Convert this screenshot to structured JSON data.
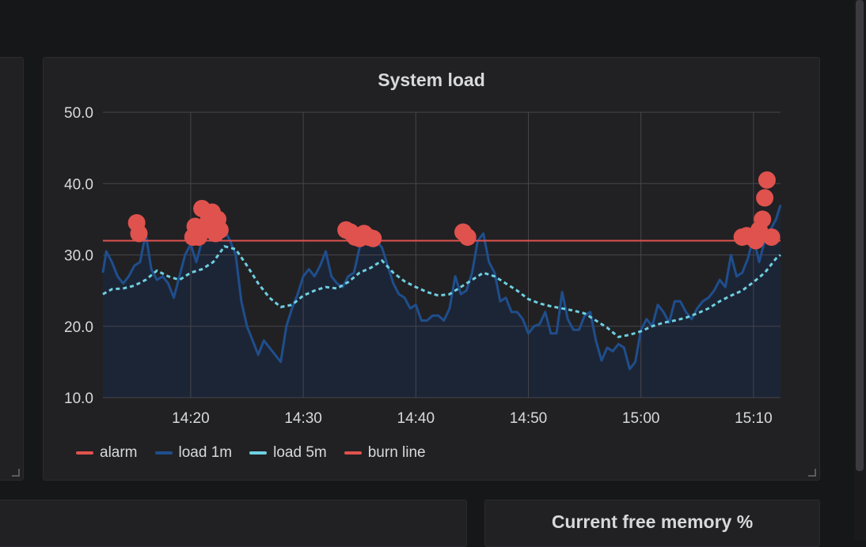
{
  "panels": {
    "main_title": "System load",
    "bottom_right_title": "Current free memory %"
  },
  "colors": {
    "alarm": "#e0524d",
    "load1": "#1f4e8c",
    "load5": "#6ed0e0",
    "burn": "#e0524d",
    "fill": "#1c2536",
    "grid": "#45454b",
    "text": "#d8d9da"
  },
  "chart_data": {
    "type": "line",
    "title": "System load",
    "ylim": [
      10,
      50
    ],
    "yticks": [
      "10.0",
      "20.0",
      "30.0",
      "40.0",
      "50.0"
    ],
    "ytick_values": [
      10,
      20,
      30,
      40,
      50
    ],
    "xlim": [
      12.2,
      72.4
    ],
    "xticks": [
      "14:20",
      "14:30",
      "14:40",
      "14:50",
      "15:00",
      "15:10"
    ],
    "xtick_values": [
      20,
      30,
      40,
      50,
      60,
      70
    ],
    "x_unit": "minutes after 14:00",
    "grid": true,
    "legend_position": "bottom-left",
    "legend": [
      "alarm",
      "load 1m",
      "load 5m",
      "burn line"
    ],
    "series": [
      {
        "name": "load 1m",
        "x": [
          12.2,
          12.5,
          13.0,
          13.5,
          14.0,
          14.5,
          15.0,
          15.5,
          16.0,
          16.5,
          17.0,
          17.5,
          18.0,
          18.5,
          19.0,
          19.5,
          20.0,
          20.5,
          21.0,
          21.5,
          22.0,
          22.5,
          23.0,
          23.5,
          24.0,
          24.5,
          25.0,
          25.5,
          26.0,
          26.5,
          27.0,
          27.5,
          28.0,
          28.5,
          29.0,
          29.5,
          30.0,
          30.5,
          31.0,
          31.5,
          32.0,
          32.5,
          33.0,
          33.5,
          34.0,
          34.5,
          35.0,
          35.5,
          36.0,
          36.5,
          37.0,
          37.5,
          38.0,
          38.5,
          39.0,
          39.5,
          40.0,
          40.5,
          41.0,
          41.5,
          42.0,
          42.5,
          43.0,
          43.5,
          44.0,
          44.5,
          45.0,
          45.5,
          46.0,
          46.5,
          47.0,
          47.5,
          48.0,
          48.5,
          49.0,
          49.5,
          50.0,
          50.5,
          51.0,
          51.5,
          52.0,
          52.5,
          53.0,
          53.5,
          54.0,
          54.5,
          55.0,
          55.5,
          56.0,
          56.5,
          57.0,
          57.5,
          58.0,
          58.5,
          59.0,
          59.5,
          60.0,
          60.5,
          61.0,
          61.5,
          62.0,
          62.5,
          63.0,
          63.5,
          64.0,
          64.5,
          65.0,
          65.5,
          66.0,
          66.5,
          67.0,
          67.5,
          68.0,
          68.5,
          69.0,
          69.5,
          70.0,
          70.5,
          71.0,
          71.5,
          72.0,
          72.4
        ],
        "values": [
          27.5,
          30.5,
          29.0,
          27.0,
          26.0,
          27.0,
          28.5,
          29.0,
          33.0,
          28.0,
          26.5,
          27.0,
          26.0,
          24.0,
          27.0,
          30.0,
          31.5,
          29.0,
          32.0,
          33.0,
          34.0,
          35.0,
          33.5,
          32.0,
          30.0,
          23.5,
          20.0,
          18.0,
          16.0,
          18.0,
          17.0,
          16.0,
          15.0,
          20.0,
          22.5,
          24.5,
          27.0,
          28.0,
          27.0,
          28.5,
          30.5,
          27.0,
          26.0,
          25.5,
          27.0,
          27.5,
          31.0,
          33.0,
          31.5,
          32.0,
          31.0,
          28.5,
          26.0,
          24.5,
          24.0,
          22.5,
          23.0,
          20.8,
          20.8,
          21.5,
          21.5,
          20.8,
          22.5,
          27.0,
          24.5,
          25.0,
          27.5,
          32.0,
          33.0,
          29.0,
          27.5,
          23.5,
          24.0,
          22.0,
          22.0,
          21.0,
          19.0,
          20.0,
          20.3,
          22.0,
          19.0,
          19.0,
          24.8,
          21.0,
          19.5,
          19.5,
          21.5,
          22.0,
          18.0,
          15.2,
          17.0,
          16.5,
          17.5,
          17.0,
          14.0,
          15.0,
          19.5,
          21.0,
          20.0,
          23.0,
          22.0,
          20.5,
          23.5,
          23.5,
          22.0,
          21.0,
          22.5,
          23.5,
          24.0,
          25.0,
          26.5,
          25.5,
          30.0,
          27.0,
          27.5,
          29.5,
          32.5,
          29.0,
          32.0,
          33.5,
          35.0,
          37.0
        ]
      },
      {
        "name": "load 5m",
        "x": [
          12.2,
          13,
          14,
          15,
          16,
          17,
          18,
          19,
          20,
          21,
          22,
          23,
          24,
          25,
          26,
          27,
          28,
          29,
          30,
          31,
          32,
          33,
          34,
          35,
          36,
          37,
          38,
          39,
          40,
          41,
          42,
          43,
          44,
          45,
          46,
          47,
          48,
          49,
          50,
          51,
          52,
          53,
          54,
          55,
          56,
          57,
          58,
          59,
          60,
          61,
          62,
          63,
          64,
          65,
          66,
          67,
          68,
          69,
          70,
          71,
          72,
          72.4
        ],
        "values": [
          24.5,
          25.2,
          25.3,
          25.7,
          26.5,
          27.8,
          27.0,
          26.5,
          27.5,
          28.0,
          29.0,
          31.2,
          30.8,
          28.5,
          26.0,
          24.0,
          22.7,
          23.0,
          24.3,
          25.0,
          25.5,
          25.3,
          26.2,
          27.5,
          28.2,
          29.2,
          27.5,
          26.3,
          25.5,
          24.8,
          24.3,
          24.5,
          25.5,
          26.5,
          27.5,
          27.0,
          26.0,
          25.0,
          23.8,
          23.2,
          22.8,
          22.5,
          22.2,
          21.8,
          20.8,
          19.8,
          18.5,
          18.8,
          19.3,
          20.0,
          20.5,
          20.8,
          21.2,
          21.8,
          22.5,
          23.5,
          24.3,
          25.0,
          26.2,
          27.5,
          29.5,
          30.0
        ]
      },
      {
        "name": "alarm",
        "x": [
          15.2,
          15.4,
          20.2,
          20.4,
          20.7,
          21.0,
          21.3,
          21.6,
          21.9,
          22.2,
          22.4,
          22.6,
          33.8,
          34.2,
          34.6,
          35.0,
          35.4,
          35.8,
          36.2,
          44.2,
          44.6,
          69.0,
          69.4,
          69.8,
          70.2,
          70.5,
          70.8,
          71.0,
          71.2,
          71.6
        ],
        "values": [
          34.5,
          33.0,
          32.5,
          34.0,
          32.5,
          36.5,
          33.5,
          35.0,
          36.0,
          33.0,
          35.0,
          33.5,
          33.5,
          33.2,
          32.5,
          32.3,
          33.0,
          32.5,
          32.3,
          33.2,
          32.5,
          32.5,
          32.7,
          32.5,
          32.0,
          33.5,
          35.0,
          38.0,
          40.5,
          32.5
        ]
      },
      {
        "name": "burn line",
        "x": [
          12.2,
          72.4
        ],
        "values": [
          32,
          32
        ]
      }
    ]
  }
}
